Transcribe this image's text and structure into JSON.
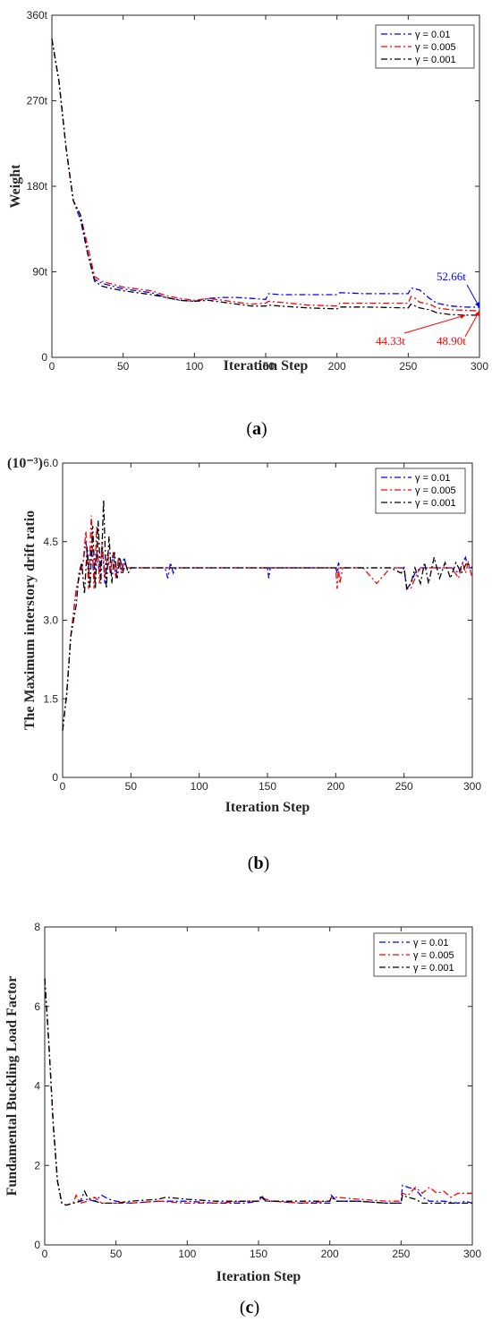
{
  "chart_data": [
    {
      "type": "line",
      "caption": "a",
      "xlabel": "Iteration Step",
      "ylabel": "Weight",
      "xlim": [
        0,
        300
      ],
      "ylim": [
        0,
        360
      ],
      "xticks": [
        0,
        50,
        100,
        150,
        200,
        250,
        300
      ],
      "xtick_labels": [
        "0",
        "50",
        "100",
        "150",
        "200",
        "250",
        "300"
      ],
      "yticks": [
        0,
        90,
        180,
        270,
        360
      ],
      "ytick_labels": [
        "0",
        "90t",
        "180t",
        "270t",
        "360t"
      ],
      "legend_position": "top-right",
      "grid": false,
      "series": [
        {
          "name": "γ = 0.01",
          "color": "#0000ff",
          "x": [
            0,
            5,
            10,
            15,
            20,
            25,
            30,
            35,
            40,
            50,
            60,
            70,
            80,
            90,
            100,
            110,
            120,
            130,
            140,
            150,
            152,
            160,
            180,
            200,
            202,
            220,
            250,
            252,
            255,
            258,
            265,
            270,
            280,
            290,
            300
          ],
          "y": [
            335,
            290,
            220,
            165,
            145,
            110,
            82,
            78,
            76,
            72,
            70,
            68,
            63,
            60,
            59,
            62,
            63,
            63,
            62,
            61,
            67,
            66,
            66,
            66,
            68,
            67,
            67,
            73,
            72,
            71,
            62,
            57,
            54,
            53,
            52.66
          ]
        },
        {
          "name": "γ = 0.005",
          "color": "#ff0000",
          "x": [
            0,
            5,
            10,
            15,
            20,
            25,
            30,
            35,
            40,
            50,
            60,
            70,
            80,
            90,
            100,
            110,
            120,
            130,
            140,
            150,
            152,
            160,
            180,
            200,
            202,
            220,
            250,
            252,
            255,
            258,
            265,
            270,
            280,
            290,
            300
          ],
          "y": [
            335,
            290,
            220,
            165,
            150,
            118,
            85,
            80,
            78,
            74,
            72,
            70,
            65,
            62,
            60,
            62,
            60,
            58,
            56,
            57,
            59,
            58,
            55,
            54,
            57,
            57,
            57,
            64,
            62,
            58,
            56,
            52,
            50,
            49.5,
            48.9
          ]
        },
        {
          "name": "γ = 0.001",
          "color": "#000000",
          "x": [
            0,
            5,
            10,
            15,
            20,
            25,
            30,
            35,
            40,
            50,
            60,
            70,
            80,
            90,
            100,
            110,
            120,
            130,
            140,
            150,
            152,
            160,
            180,
            200,
            202,
            220,
            250,
            252,
            255,
            258,
            265,
            270,
            280,
            290,
            300
          ],
          "y": [
            335,
            290,
            220,
            165,
            150,
            110,
            80,
            75,
            73,
            70,
            68,
            66,
            63,
            60,
            59,
            60,
            58,
            56,
            54,
            54,
            55,
            54,
            52,
            51,
            53,
            53,
            52,
            56,
            54,
            52,
            50,
            47,
            45,
            44.5,
            44.33
          ]
        }
      ],
      "annotations": [
        {
          "text": "52.66t",
          "color": "#0000ff",
          "at": [
            300,
            52.66
          ]
        },
        {
          "text": "44.33t",
          "color": "#ff0000",
          "at": [
            290,
            44.33
          ]
        },
        {
          "text": "48.90t",
          "color": "#ff0000",
          "at": [
            300,
            48.9
          ]
        }
      ]
    },
    {
      "type": "line",
      "caption": "b",
      "xlabel": "Iteration Step",
      "ylabel": "The Maximum interstory drift ratio",
      "y_unit_label": "(10⁻³)",
      "xlim": [
        0,
        300
      ],
      "ylim": [
        0,
        6
      ],
      "xticks": [
        0,
        50,
        100,
        150,
        200,
        250,
        300
      ],
      "xtick_labels": [
        "0",
        "50",
        "100",
        "150",
        "200",
        "250",
        "300"
      ],
      "yticks": [
        0,
        1.5,
        3,
        4.5,
        6
      ],
      "ytick_labels": [
        "0",
        "1.5",
        "3.0",
        "4.5",
        "6.0"
      ],
      "legend_position": "top-right",
      "grid": false,
      "series": [
        {
          "name": "γ = 0.01",
          "color": "#0000ff",
          "x": [
            0,
            3,
            6,
            10,
            13,
            15,
            17,
            19,
            21,
            23,
            25,
            27,
            29,
            31,
            33,
            35,
            37,
            39,
            41,
            43,
            45,
            47,
            50,
            60,
            75,
            77,
            79,
            81,
            83,
            100,
            150,
            151,
            152,
            153,
            200,
            201,
            202,
            203,
            250,
            252,
            255,
            258,
            262,
            270,
            280,
            285,
            290,
            293,
            295,
            297,
            300
          ],
          "y": [
            0.9,
            1.6,
            2.7,
            3.6,
            3.9,
            4.1,
            4.5,
            4.0,
            4.4,
            3.8,
            4.3,
            3.9,
            4.4,
            3.7,
            4.2,
            3.9,
            4.3,
            3.8,
            4.2,
            3.9,
            4.2,
            4.0,
            4.0,
            4.0,
            4.0,
            3.8,
            4.1,
            3.9,
            4.0,
            4.0,
            4.0,
            3.8,
            4.0,
            4.0,
            4.0,
            3.9,
            4.1,
            4.0,
            4.0,
            3.6,
            3.7,
            3.9,
            4.0,
            4.0,
            4.0,
            4.0,
            3.9,
            4.1,
            4.2,
            4.0,
            4.0
          ]
        },
        {
          "name": "γ = 0.005",
          "color": "#ff0000",
          "x": [
            0,
            3,
            6,
            10,
            13,
            15,
            17,
            19,
            21,
            23,
            25,
            27,
            29,
            31,
            33,
            35,
            37,
            39,
            41,
            43,
            45,
            47,
            50,
            60,
            80,
            100,
            150,
            200,
            201,
            202,
            203,
            205,
            220,
            230,
            240,
            250,
            252,
            255,
            258,
            262,
            270,
            280,
            285,
            290,
            293,
            295,
            297,
            300
          ],
          "y": [
            0.9,
            1.6,
            2.7,
            3.6,
            3.9,
            4.1,
            4.7,
            3.6,
            5.0,
            3.6,
            4.8,
            3.7,
            4.5,
            3.8,
            4.3,
            3.9,
            4.3,
            3.8,
            4.2,
            3.9,
            4.1,
            4.0,
            4.0,
            4.0,
            4.0,
            4.0,
            4.0,
            4.0,
            3.6,
            4.0,
            3.7,
            4.0,
            4.0,
            3.7,
            4.0,
            4.0,
            3.6,
            3.6,
            3.8,
            4.0,
            4.0,
            4.0,
            4.0,
            3.8,
            4.1,
            3.9,
            4.1,
            3.8
          ]
        },
        {
          "name": "γ = 0.001",
          "color": "#000000",
          "x": [
            0,
            3,
            6,
            10,
            12,
            14,
            16,
            18,
            20,
            22,
            24,
            26,
            28,
            30,
            32,
            34,
            36,
            38,
            40,
            42,
            44,
            46,
            48,
            50,
            60,
            100,
            150,
            200,
            220,
            240,
            248,
            250,
            252,
            255,
            258,
            262,
            265,
            268,
            272,
            276,
            280,
            284,
            288,
            292,
            296,
            300
          ],
          "y": [
            0.9,
            1.6,
            2.7,
            3.3,
            3.9,
            4.1,
            3.5,
            4.4,
            3.6,
            4.8,
            3.6,
            4.9,
            3.7,
            5.3,
            3.6,
            4.6,
            3.7,
            4.3,
            3.8,
            4.2,
            3.9,
            4.1,
            3.9,
            4.0,
            4.0,
            4.0,
            4.0,
            4.0,
            4.0,
            4.0,
            3.9,
            4.0,
            3.6,
            3.7,
            4.0,
            3.7,
            4.1,
            3.7,
            4.2,
            3.8,
            4.1,
            3.8,
            4.1,
            3.9,
            4.1,
            4.0
          ]
        }
      ]
    },
    {
      "type": "line",
      "caption": "c",
      "xlabel": "Iteration Step",
      "ylabel": "Fundamental Buckling Load Factor",
      "xlim": [
        0,
        300
      ],
      "ylim": [
        0,
        8
      ],
      "xticks": [
        0,
        50,
        100,
        150,
        200,
        250,
        300
      ],
      "xtick_labels": [
        "0",
        "50",
        "100",
        "150",
        "200",
        "250",
        "300"
      ],
      "yticks": [
        0,
        2,
        4,
        6,
        8
      ],
      "ytick_labels": [
        "0",
        "2",
        "4",
        "6",
        "8"
      ],
      "legend_position": "top-right",
      "grid": false,
      "series": [
        {
          "name": "γ = 0.01",
          "color": "#0000ff",
          "x": [
            0,
            3,
            6,
            9,
            12,
            15,
            20,
            25,
            30,
            35,
            40,
            45,
            50,
            60,
            80,
            100,
            120,
            140,
            150,
            152,
            155,
            160,
            180,
            200,
            201,
            205,
            220,
            240,
            250,
            251,
            255,
            260,
            265,
            270,
            280,
            290,
            295,
            300
          ],
          "y": [
            6.7,
            5.0,
            3.0,
            1.6,
            1.05,
            1.0,
            1.05,
            1.1,
            1.15,
            1.1,
            1.25,
            1.15,
            1.1,
            1.05,
            1.1,
            1.1,
            1.05,
            1.05,
            1.1,
            1.2,
            1.1,
            1.1,
            1.05,
            1.05,
            1.25,
            1.1,
            1.1,
            1.05,
            1.05,
            1.5,
            1.45,
            1.4,
            1.2,
            1.1,
            1.1,
            1.05,
            1.1,
            1.05
          ]
        },
        {
          "name": "γ = 0.005",
          "color": "#ff0000",
          "x": [
            0,
            3,
            6,
            9,
            12,
            15,
            20,
            22,
            25,
            30,
            35,
            40,
            50,
            60,
            80,
            100,
            120,
            140,
            150,
            152,
            155,
            160,
            180,
            200,
            201,
            205,
            220,
            240,
            250,
            251,
            255,
            260,
            265,
            270,
            275,
            280,
            285,
            290,
            295,
            300
          ],
          "y": [
            6.7,
            5.0,
            3.0,
            1.6,
            1.05,
            1.0,
            1.05,
            1.25,
            1.05,
            1.1,
            1.2,
            1.05,
            1.05,
            1.05,
            1.1,
            1.05,
            1.05,
            1.1,
            1.1,
            1.2,
            1.15,
            1.1,
            1.05,
            1.1,
            1.2,
            1.2,
            1.15,
            1.1,
            1.1,
            1.3,
            1.25,
            1.45,
            1.3,
            1.45,
            1.3,
            1.35,
            1.2,
            1.3,
            1.3,
            1.3
          ]
        },
        {
          "name": "γ = 0.001",
          "color": "#000000",
          "x": [
            0,
            3,
            6,
            9,
            12,
            15,
            20,
            25,
            28,
            30,
            35,
            40,
            50,
            60,
            80,
            85,
            100,
            120,
            140,
            150,
            152,
            155,
            160,
            180,
            200,
            201,
            205,
            220,
            240,
            250,
            251,
            255,
            260,
            265,
            270,
            275,
            280,
            290,
            300
          ],
          "y": [
            6.7,
            5.0,
            3.0,
            1.6,
            1.05,
            1.0,
            1.05,
            1.1,
            1.35,
            1.2,
            1.1,
            1.05,
            1.05,
            1.1,
            1.15,
            1.2,
            1.15,
            1.1,
            1.1,
            1.1,
            1.25,
            1.1,
            1.1,
            1.1,
            1.1,
            1.2,
            1.1,
            1.1,
            1.05,
            1.05,
            1.25,
            1.2,
            1.15,
            1.05,
            1.05,
            1.05,
            1.05,
            1.05,
            1.05
          ]
        }
      ]
    }
  ]
}
